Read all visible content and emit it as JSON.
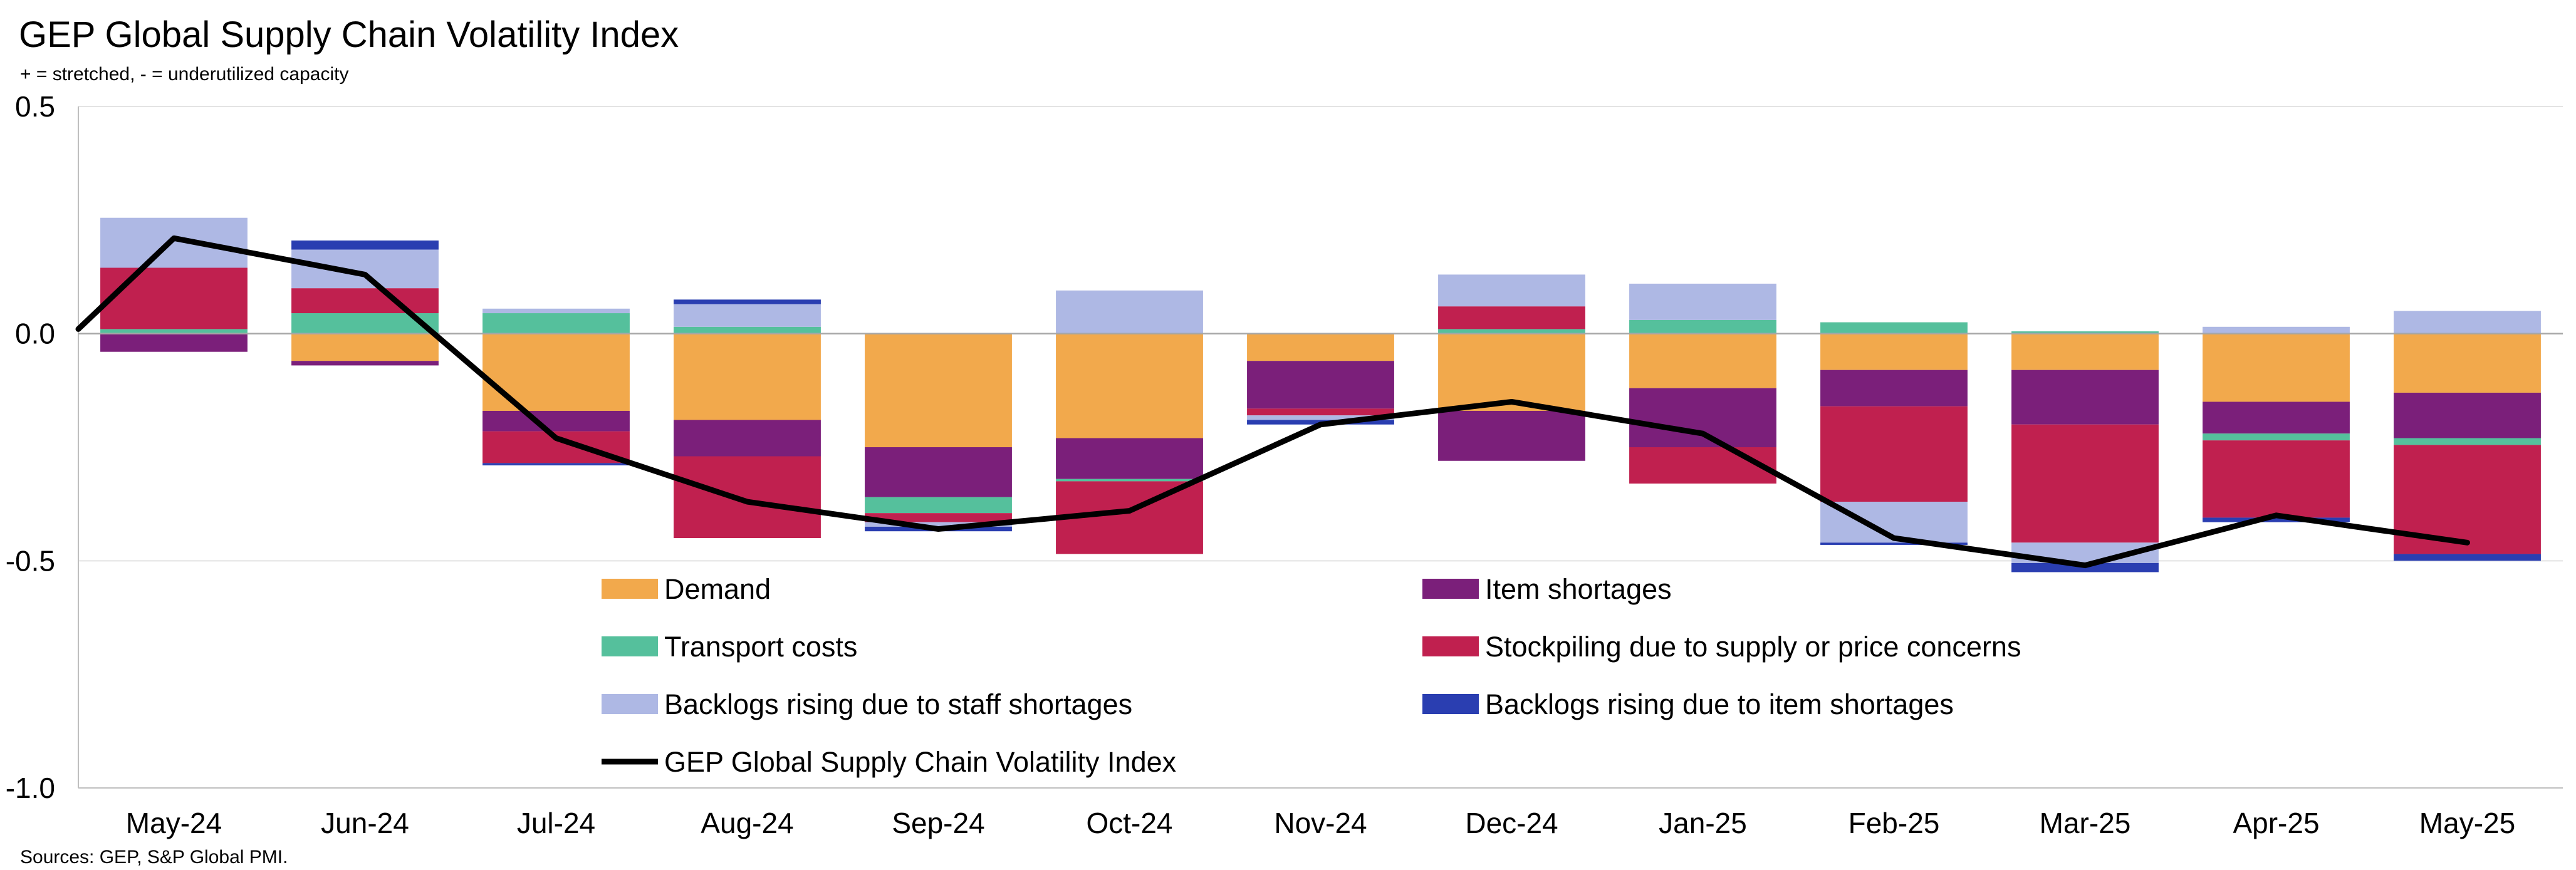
{
  "chart_data": {
    "type": "bar",
    "stacked": true,
    "title": "GEP Global Supply Chain Volatility Index",
    "subtitle": "+ = stretched, - = underutilized capacity",
    "source": "Sources: GEP, S&P Global PMI.",
    "categories": [
      "May-24",
      "Jun-24",
      "Jul-24",
      "Aug-24",
      "Sep-24",
      "Oct-24",
      "Nov-24",
      "Dec-24",
      "Jan-25",
      "Feb-25",
      "Mar-25",
      "Apr-25",
      "May-25"
    ],
    "y_ticks": [
      "0.5",
      "0.0",
      "-0.5",
      "-1.0"
    ],
    "ylim": [
      -1.0,
      0.5
    ],
    "grid": true,
    "legend_position": "inside-bottom",
    "series": [
      {
        "name": "Demand",
        "color": "#F2A94C",
        "values": [
          0.0,
          -0.06,
          -0.17,
          -0.19,
          -0.25,
          -0.23,
          -0.06,
          -0.17,
          -0.12,
          -0.08,
          -0.08,
          -0.15,
          -0.13
        ]
      },
      {
        "name": "Item shortages",
        "color": "#7B1F7A",
        "values": [
          -0.04,
          -0.01,
          -0.045,
          -0.08,
          -0.11,
          -0.09,
          -0.105,
          -0.11,
          -0.13,
          -0.08,
          -0.12,
          -0.07,
          -0.1
        ]
      },
      {
        "name": "Transport costs",
        "color": "#55C09C",
        "values": [
          0.01,
          0.045,
          0.045,
          0.015,
          -0.035,
          -0.005,
          0.0,
          0.01,
          0.03,
          0.025,
          0.005,
          -0.015,
          -0.015
        ]
      },
      {
        "name": "Stockpiling due to supply or price concerns",
        "color": "#C0204F",
        "values": [
          0.135,
          0.055,
          -0.07,
          -0.18,
          -0.02,
          -0.16,
          -0.015,
          0.05,
          -0.08,
          -0.21,
          -0.26,
          -0.17,
          -0.24
        ]
      },
      {
        "name": "Backlogs rising due to staff shortages",
        "color": "#AEB8E4",
        "values": [
          0.11,
          0.085,
          0.01,
          0.05,
          -0.01,
          0.095,
          -0.01,
          0.07,
          0.08,
          -0.09,
          -0.045,
          0.015,
          0.05
        ]
      },
      {
        "name": "Backlogs rising due to item shortages",
        "color": "#2A3EB1",
        "values": [
          0.0,
          0.02,
          -0.005,
          0.01,
          -0.01,
          0.0,
          -0.01,
          0.0,
          0.0,
          -0.005,
          -0.02,
          -0.01,
          -0.015
        ]
      }
    ],
    "line_series": {
      "name": "GEP Global Supply Chain Volatility Index",
      "color": "#000000",
      "values": [
        0.21,
        0.13,
        -0.23,
        -0.37,
        -0.43,
        -0.39,
        -0.2,
        -0.15,
        -0.22,
        -0.45,
        -0.51,
        -0.4,
        -0.46
      ]
    }
  }
}
